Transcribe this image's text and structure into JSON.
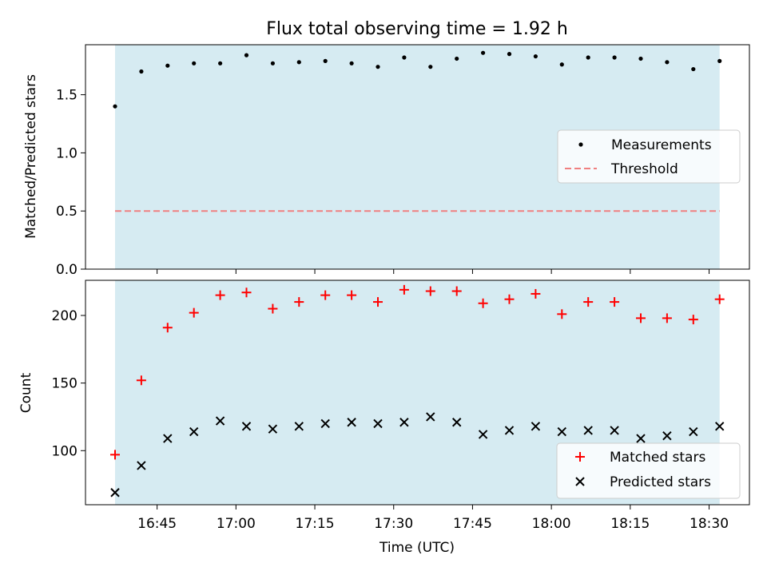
{
  "chart_data": [
    {
      "type": "scatter",
      "title": "Flux total observing time = 1.92 h",
      "ylabel": "Matched/Predicted stars",
      "xlabel": "",
      "ylim": [
        0,
        1.93
      ],
      "yticks": [
        "0.0",
        "0.5",
        "1.0",
        "1.5"
      ],
      "shaded_range": [
        "16:37",
        "18:32"
      ],
      "shade_color": "#add8e6",
      "legend_position": "center-right",
      "x": [
        "16:37",
        "16:42",
        "16:47",
        "16:52",
        "16:57",
        "17:02",
        "17:07",
        "17:12",
        "17:17",
        "17:22",
        "17:27",
        "17:32",
        "17:37",
        "17:42",
        "17:47",
        "17:52",
        "17:57",
        "18:02",
        "18:07",
        "18:12",
        "18:17",
        "18:22",
        "18:27",
        "18:32"
      ],
      "series": [
        {
          "name": "Measurements",
          "marker": "dot",
          "color": "#000000",
          "values": [
            1.4,
            1.7,
            1.75,
            1.77,
            1.77,
            1.84,
            1.77,
            1.78,
            1.79,
            1.77,
            1.74,
            1.82,
            1.74,
            1.81,
            1.86,
            1.85,
            1.83,
            1.76,
            1.82,
            1.82,
            1.81,
            1.78,
            1.72,
            1.79
          ]
        }
      ],
      "threshold": {
        "name": "Threshold",
        "value": 0.5,
        "color": "#f08080"
      }
    },
    {
      "type": "scatter",
      "xlabel": "Time (UTC)",
      "ylabel": "Count",
      "ylim": [
        60,
        226
      ],
      "yticks": [
        "100",
        "150",
        "200"
      ],
      "xticks": [
        "16:45",
        "17:00",
        "17:15",
        "17:30",
        "17:45",
        "18:00",
        "18:15",
        "18:30"
      ],
      "shaded_range": [
        "16:37",
        "18:32"
      ],
      "shade_color": "#add8e6",
      "legend_position": "bottom-right",
      "x": [
        "16:37",
        "16:42",
        "16:47",
        "16:52",
        "16:57",
        "17:02",
        "17:07",
        "17:12",
        "17:17",
        "17:22",
        "17:27",
        "17:32",
        "17:37",
        "17:42",
        "17:47",
        "17:52",
        "17:57",
        "18:02",
        "18:07",
        "18:12",
        "18:17",
        "18:22",
        "18:27",
        "18:32"
      ],
      "series": [
        {
          "name": "Matched stars",
          "marker": "plus",
          "color": "#ff0000",
          "values": [
            97,
            152,
            191,
            202,
            215,
            217,
            205,
            210,
            215,
            215,
            210,
            219,
            218,
            218,
            209,
            212,
            216,
            201,
            210,
            210,
            198,
            198,
            197,
            212
          ]
        },
        {
          "name": "Predicted stars",
          "marker": "x",
          "color": "#000000",
          "values": [
            69,
            89,
            109,
            114,
            122,
            118,
            116,
            118,
            120,
            121,
            120,
            121,
            125,
            121,
            112,
            115,
            118,
            114,
            115,
            115,
            109,
            111,
            114,
            118
          ]
        }
      ]
    }
  ]
}
